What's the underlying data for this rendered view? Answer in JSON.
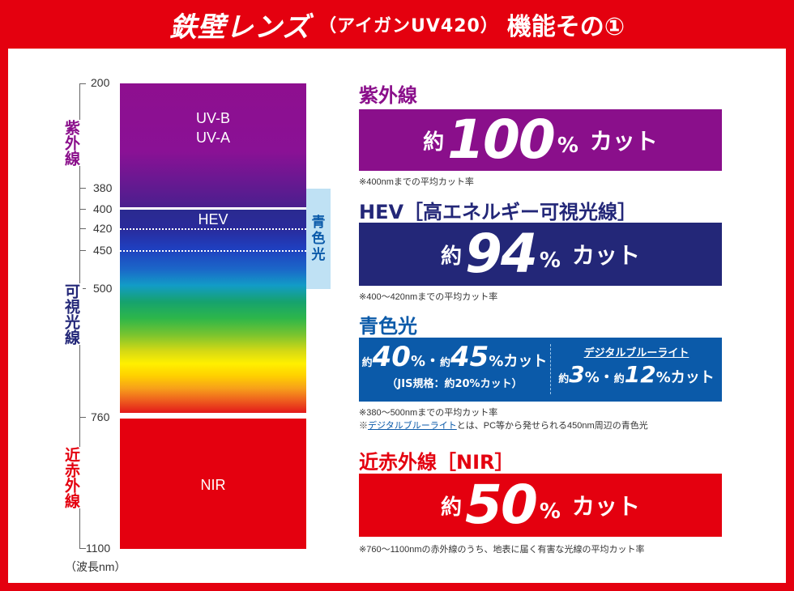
{
  "header": {
    "brand": "鉄壁レンズ",
    "product": "（アイガンUV420）",
    "suffix": "機能その①"
  },
  "spectrum": {
    "axis_labels": {
      "uv": "紫外線",
      "visible": "可視光線",
      "nir": "近赤外線"
    },
    "ticks": [
      "200",
      "380",
      "400",
      "420",
      "450",
      "500",
      "760",
      "1100"
    ],
    "unit": "（波長nm）",
    "uv_text": [
      "UV-B",
      "UV-A"
    ],
    "hev_text": "HEV",
    "nir_text": "NIR",
    "blue_light_text": [
      "青",
      "色",
      "光"
    ]
  },
  "uv": {
    "title": "紫外線",
    "prefix": "約",
    "value": "100",
    "percent": "%",
    "cut": "カット",
    "note": "※400nmまでの平均カット率",
    "color": "#8a0f8b"
  },
  "hev": {
    "title": "HEV［高エネルギー可視光線］",
    "prefix": "約",
    "value": "94",
    "percent": "%",
    "cut": "カット",
    "note": "※400〜420nmまでの平均カット率",
    "color": "#232778"
  },
  "blue": {
    "title": "青色光",
    "left_prefix1": "約",
    "left_value1": "40",
    "left_percent1": "%",
    "dot": "・",
    "left_prefix2": "約",
    "left_value2": "45",
    "left_percent2": "%",
    "left_cut": "カット",
    "left_note": "（JIS規格：約20%カット）",
    "right_title": "デジタルブルーライト",
    "right_prefix1": "約",
    "right_value1": "3",
    "right_percent1": "%",
    "right_prefix2": "約",
    "right_value2": "12",
    "right_percent2": "%",
    "right_cut": "カット",
    "note1": "※380〜500nmまでの平均カット率",
    "note2_prefix": "※",
    "note2_link": "デジタルブルーライト",
    "note2_rest": "とは、PC等から発せられる450nm周辺の青色光",
    "color": "#0b5aa9"
  },
  "nir": {
    "title": "近赤外線［NIR］",
    "prefix": "約",
    "value": "50",
    "percent": "%",
    "cut": "カット",
    "note": "※760〜1100nmの赤外線のうち、地表に届く有害な光線の平均カット率",
    "color": "#e4000f"
  }
}
